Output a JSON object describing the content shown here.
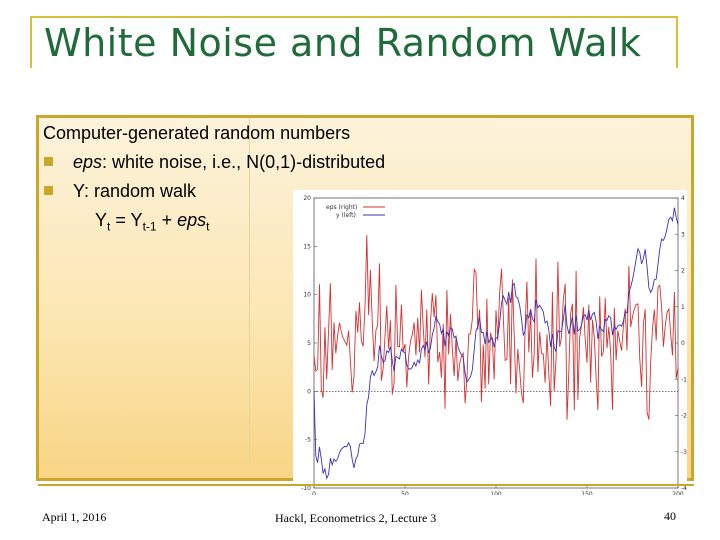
{
  "slide": {
    "title": "White Noise and Random Walk",
    "intro": "Computer-generated random numbers",
    "bullet1_var": "eps",
    "bullet1_rest": ": white noise, i.e., N(0,1)-distributed",
    "bullet2": "Y: random walk",
    "formula": {
      "y": "Y",
      "t": "t",
      "eq": " = Y",
      "tm1": "t-1",
      "plus": " + ",
      "eps": "eps",
      "t2": "t"
    },
    "colors": {
      "title": "#1f6b3a",
      "accent": "#c9a72a",
      "eps_series": "#d63232",
      "y_series": "#3a33b8"
    }
  },
  "footer": {
    "date": "April 1, 2016",
    "course": "Hackl, Econometrics 2, Lecture 3",
    "page": "40"
  },
  "chart_data": {
    "type": "line",
    "x_ticks": [
      "0",
      "50",
      "100",
      "150",
      "200"
    ],
    "xlim": [
      0,
      200
    ],
    "left_axis": {
      "ticks": [
        "20",
        "15",
        "10",
        "5",
        "0",
        "-5",
        "-10"
      ],
      "ylim": [
        -10,
        20
      ]
    },
    "right_axis": {
      "ticks": [
        "4",
        "3",
        "2",
        "1",
        "0",
        "-1",
        "-2",
        "-3",
        "-4"
      ],
      "ylim": [
        -4,
        4
      ]
    },
    "legend_position": "top-left",
    "series": [
      {
        "name": "eps (right)",
        "axis": "right",
        "color": "#d63232"
      },
      {
        "name": "y (left)",
        "axis": "left",
        "color": "#3a33b8"
      }
    ]
  }
}
